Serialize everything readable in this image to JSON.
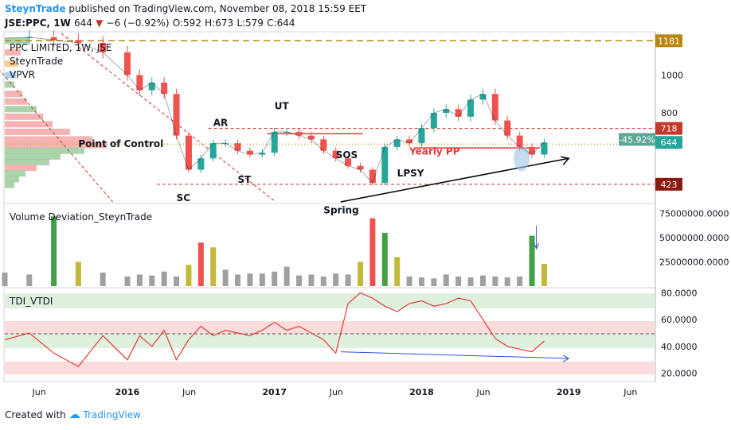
{
  "header": {
    "author": "SteynTrade",
    "published": "published on TradingView.com, November 08, 2018 15:59 EET"
  },
  "symbol": {
    "ticker": "JSE:PPC, 1W",
    "last": "644",
    "change": "−6 (−0.92%)",
    "open": "O:592",
    "high": "H:673",
    "low": "L:579",
    "close": "C:644"
  },
  "price_panel": {
    "legend_lines": [
      "PPC LIMITED, 1W, JSE",
      "SteynTrade",
      "VPVR"
    ],
    "yticks": [
      1000,
      800
    ],
    "yaxis_labels": [
      {
        "text": "1181",
        "value": 1181,
        "color": "#b8860b"
      },
      {
        "text": "718",
        "value": 718,
        "color": "#c0392b"
      },
      {
        "text": "644",
        "value": 644,
        "color": "#26a69a"
      },
      {
        "text": "423",
        "value": 423,
        "color": "#8b1a0e"
      }
    ],
    "price_tag": "-45.92%",
    "annotations": [
      {
        "text": "Point of Control",
        "x": "2015-09",
        "y": 620,
        "color": "#131722"
      },
      {
        "text": "AR",
        "x": "2016-08",
        "y": 730,
        "color": "#131722"
      },
      {
        "text": "UT",
        "x": "2017-01",
        "y": 820,
        "color": "#131722"
      },
      {
        "text": "SC",
        "x": "2016-05",
        "y": 335,
        "color": "#131722"
      },
      {
        "text": "ST",
        "x": "2016-10",
        "y": 430,
        "color": "#131722"
      },
      {
        "text": "SOS",
        "x": "2017-06",
        "y": 560,
        "color": "#131722"
      },
      {
        "text": "LPSY",
        "x": "2017-11",
        "y": 465,
        "color": "#131722"
      },
      {
        "text": "Spring",
        "x": "2017-05",
        "y": 270,
        "color": "#131722"
      },
      {
        "text": "Yearly PP",
        "x": "2017-12",
        "y": 580,
        "color": "#e53935"
      }
    ]
  },
  "volume_panel": {
    "title": "Volume Deviation_SteynTrade",
    "yticks": [
      "75000000.0000",
      "50000000.0000",
      "25000000.0000"
    ]
  },
  "tdi_panel": {
    "title": "TDI_VTDI",
    "yticks": [
      "80.0000",
      "60.0000",
      "40.0000",
      "20.0000"
    ]
  },
  "xaxis": {
    "labels": [
      "Jun",
      "2016",
      "Jun",
      "2017",
      "Jun",
      "2018",
      "Jun",
      "2019",
      "Jun"
    ]
  },
  "footer": {
    "created_with": "Created with",
    "brand": "TradingView"
  },
  "chart_data": {
    "type": "line",
    "title": "JSE:PPC, 1W",
    "x_range": [
      "2015-03",
      "2019-08"
    ],
    "price": {
      "ylim": [
        330,
        1220
      ],
      "levels": [
        {
          "name": "1181",
          "value": 1181
        },
        {
          "name": "718",
          "value": 718
        },
        {
          "name": "644",
          "value": 644
        },
        {
          "name": "423",
          "value": 423
        }
      ],
      "x": [
        "2015-03",
        "2015-05",
        "2015-07",
        "2015-09",
        "2015-11",
        "2016-01",
        "2016-02",
        "2016-03",
        "2016-04",
        "2016-05",
        "2016-06",
        "2016-07",
        "2016-08",
        "2016-09",
        "2016-10",
        "2016-11",
        "2016-12",
        "2017-01",
        "2017-02",
        "2017-03",
        "2017-04",
        "2017-05",
        "2017-06",
        "2017-07",
        "2017-08",
        "2017-09",
        "2017-10",
        "2017-11",
        "2017-12",
        "2018-01",
        "2018-02",
        "2018-03",
        "2018-04",
        "2018-05",
        "2018-06",
        "2018-07",
        "2018-08",
        "2018-09",
        "2018-10",
        "2018-11"
      ],
      "close": [
        1195,
        1200,
        1185,
        1170,
        1120,
        1000,
        920,
        960,
        900,
        680,
        500,
        560,
        640,
        640,
        600,
        580,
        590,
        700,
        700,
        680,
        660,
        600,
        560,
        520,
        500,
        430,
        620,
        660,
        640,
        720,
        800,
        820,
        780,
        870,
        900,
        760,
        680,
        620,
        580,
        644
      ]
    },
    "volume": {
      "ylim": [
        0,
        82000000
      ],
      "values": [
        14000000,
        12000000,
        72000000,
        25000000,
        14000000,
        10000000,
        12000000,
        11000000,
        15000000,
        10000000,
        22000000,
        45000000,
        40000000,
        17000000,
        12000000,
        13000000,
        13000000,
        15000000,
        20000000,
        11000000,
        12000000,
        10000000,
        13000000,
        12000000,
        25000000,
        70000000,
        55000000,
        30000000,
        10000000,
        9000000,
        8000000,
        12000000,
        10000000,
        9000000,
        11000000,
        10000000,
        9000000,
        10000000,
        52000000,
        23000000
      ]
    },
    "tdi": {
      "ylim": [
        15,
        82
      ],
      "values": [
        45,
        50,
        35,
        25,
        48,
        30,
        48,
        40,
        52,
        30,
        45,
        55,
        48,
        52,
        50,
        48,
        52,
        58,
        52,
        55,
        50,
        45,
        35,
        72,
        80,
        76,
        70,
        66,
        72,
        74,
        70,
        72,
        76,
        74,
        60,
        46,
        40,
        38,
        36,
        44
      ]
    }
  }
}
